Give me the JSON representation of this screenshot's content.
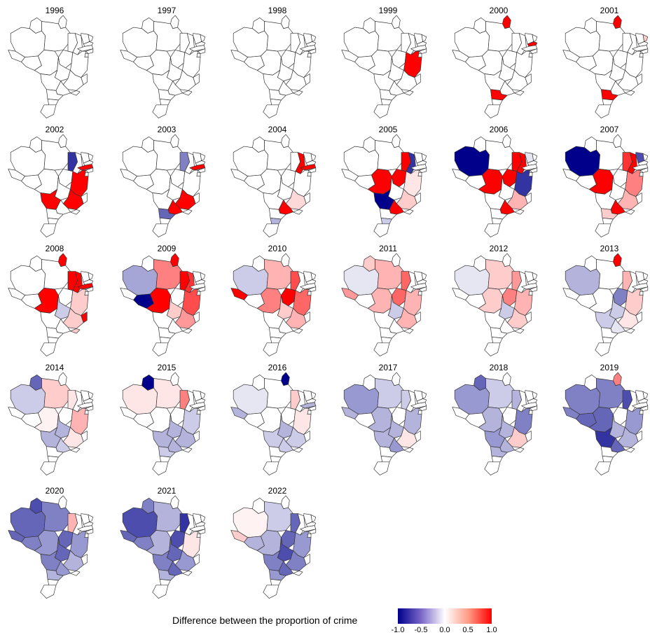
{
  "panels": [
    {
      "year": "1996",
      "fills": {}
    },
    {
      "year": "1997",
      "fills": {}
    },
    {
      "year": "1998",
      "fills": {}
    },
    {
      "year": "1999",
      "fills": {
        "BA": 1.0
      }
    },
    {
      "year": "2000",
      "fills": {
        "AP": 1.0,
        "PB": 1.0,
        "PR": 1.0
      }
    },
    {
      "year": "2001",
      "fills": {
        "AP": 1.0,
        "PR": 1.0,
        "RN": 0.2
      }
    },
    {
      "year": "2002",
      "fills": {
        "MA": -0.8,
        "BA": 1.0,
        "MG": 1.0,
        "PE": 1.0,
        "MS": 1.0
      }
    },
    {
      "year": "2003",
      "fills": {
        "MA": -0.5,
        "PE": 1.0,
        "MG": 1.0,
        "SP": 1.0,
        "PR": -0.6
      }
    },
    {
      "year": "2004",
      "fills": {
        "PI": 1.0,
        "PE": 1.0,
        "MG": 0.15,
        "SP": 1.0,
        "SC": -0.3
      }
    },
    {
      "year": "2005",
      "fills": {
        "MT": 1.0,
        "TO": 1.0,
        "MA": 1.0,
        "PI": -0.8,
        "BA": 0.1,
        "MS": -1.0,
        "SP": 1.0,
        "MG": 0.2,
        "SC": -0.2
      }
    },
    {
      "year": "2006",
      "fills": {
        "AM": -1.0,
        "MT": 1.0,
        "TO": 1.0,
        "MA": 1.0,
        "PI": 1.0,
        "BA": -0.8,
        "MG": 0.3,
        "SP": 1.0,
        "CE": -0.1
      }
    },
    {
      "year": "2007",
      "fills": {
        "AM": -1.0,
        "MT": 1.0,
        "MA": 0.8,
        "PI": 1.0,
        "CE": -0.7,
        "BA": 0.5,
        "MG": 0.3,
        "SP": 1.0,
        "PR": 0.2
      }
    },
    {
      "year": "2008",
      "fills": {
        "AP": 1.0,
        "MT": 1.0,
        "MA": 1.0,
        "PI": 1.0,
        "PE": 1.0,
        "BA": 0.2,
        "MG": 0.2,
        "ES": 1.0,
        "GO": -0.2,
        "RJ": 0.2
      }
    },
    {
      "year": "2009",
      "fills": {
        "AM": -0.35,
        "AP": 1.0,
        "PA": 0.5,
        "MT": 1.0,
        "RO": -1.0,
        "MA": 1.0,
        "PI": 0.8,
        "BA": 0.7,
        "MG": 0.4,
        "GO": 0.2
      }
    },
    {
      "year": "2010",
      "fills": {
        "AM": -0.2,
        "PA": 0.3,
        "AC": 1.0,
        "MT": 0.5,
        "TO": 1.0,
        "MA": 0.7,
        "BA": 0.6,
        "MG": 0.3,
        "GO": 0.2
      }
    },
    {
      "year": "2011",
      "fills": {
        "AM": -0.1,
        "PA": 0.3,
        "AC": 0.4,
        "MT": 0.3,
        "TO": 0.6,
        "MA": 0.6,
        "BA": 0.3,
        "MG": 0.3,
        "RR": 0.2,
        "GO": -0.2
      }
    },
    {
      "year": "2012",
      "fills": {
        "AM": -0.1,
        "PA": 0.2,
        "MT": 0.2,
        "TO": 0.5,
        "MA": 0.4,
        "BA": 0.3,
        "MG": 0.2,
        "GO": -0.2
      }
    },
    {
      "year": "2013",
      "fills": {
        "AM": -0.3,
        "AP": 1.0,
        "MA": 0.3,
        "TO": -0.5,
        "BA": 0.2,
        "MG": 0.1,
        "GO": -0.2,
        "MS": -0.2,
        "SP": -0.1
      }
    },
    {
      "year": "2014",
      "fills": {
        "AM": -0.2,
        "RR": -0.6,
        "PA": 0.2,
        "MT": 0.05,
        "MA": 0.1,
        "BA": 0.3,
        "MG": 0.1,
        "GO": -0.3,
        "MS": -0.3,
        "SP": -0.2
      }
    },
    {
      "year": "2015",
      "fills": {
        "AM": 0.1,
        "RR": -1.0,
        "PA": 0.1,
        "MA": 0.5,
        "BA": -0.2,
        "MG": -0.3,
        "GO": -0.3,
        "MS": -0.3,
        "SP": -0.3,
        "PR": -0.2
      }
    },
    {
      "year": "2016",
      "fills": {
        "AP": -1.0,
        "AM": -0.1,
        "AC": -0.3,
        "MA": 0.2,
        "BA": 0.1,
        "MG": -0.2,
        "GO": -0.3,
        "MS": -0.2,
        "SP": -0.2,
        "PE": -0.3
      }
    },
    {
      "year": "2017",
      "fills": {
        "AM": -0.4,
        "AC": -0.3,
        "PA": -0.2,
        "MT": -0.3,
        "MA": -0.2,
        "BA": -0.3,
        "MG": 0.1,
        "GO": -0.3,
        "MS": -0.3,
        "SP": -0.4
      }
    },
    {
      "year": "2018",
      "fills": {
        "AM": -0.4,
        "RR": -0.6,
        "PA": -0.2,
        "MT": -0.3,
        "MA": -0.3,
        "BA": -0.5,
        "MG": 0.2,
        "GO": -0.3,
        "MS": -0.4,
        "SP": -0.3,
        "PR": -0.3
      }
    },
    {
      "year": "2019",
      "fills": {
        "AM": -0.5,
        "AP": 0.5,
        "PA": -0.5,
        "MT": -0.6,
        "MA": -0.7,
        "BA": -0.4,
        "MG": -0.3,
        "GO": -0.3,
        "MS": -0.8,
        "SP": -0.6,
        "RO": -0.6,
        "AC": -0.5
      }
    },
    {
      "year": "2020",
      "fills": {
        "AM": -0.6,
        "RR": -0.7,
        "PA": -0.5,
        "AC": -0.6,
        "RO": -0.5,
        "MT": -0.4,
        "MA": 0.3,
        "TO": -0.6,
        "BA": -0.4,
        "MG": -0.3,
        "GO": -0.6,
        "MS": -0.5,
        "SP": -0.4,
        "PR": -0.3
      }
    },
    {
      "year": "2021",
      "fills": {
        "AM": -0.7,
        "RR": -0.5,
        "PA": -0.3,
        "AC": -0.6,
        "RO": -0.5,
        "MT": -0.3,
        "TO": -0.7,
        "MA": -0.8,
        "BA": 0.1,
        "MG": -0.4,
        "GO": -0.6,
        "MS": -0.5,
        "SP": -0.6,
        "PR": -0.3
      }
    },
    {
      "year": "2022",
      "fills": {
        "AM": 0.05,
        "AC": 0.2,
        "PA": -0.2,
        "MT": -0.3,
        "TO": -0.6,
        "MA": -0.6,
        "BA": -0.4,
        "MG": -0.5,
        "GO": -0.7,
        "MS": -0.5,
        "SP": -0.6,
        "PR": -0.4,
        "RO": -0.3
      }
    }
  ],
  "legend": {
    "title": "Difference between the proportion of crime",
    "ticks": [
      "-1.0",
      "-0.5",
      "0.0",
      "0.5",
      "1.0"
    ],
    "colors": {
      "low": "#00008b",
      "mid": "#ffffff",
      "high": "#ff0000"
    },
    "range": [
      -1,
      1
    ]
  }
}
